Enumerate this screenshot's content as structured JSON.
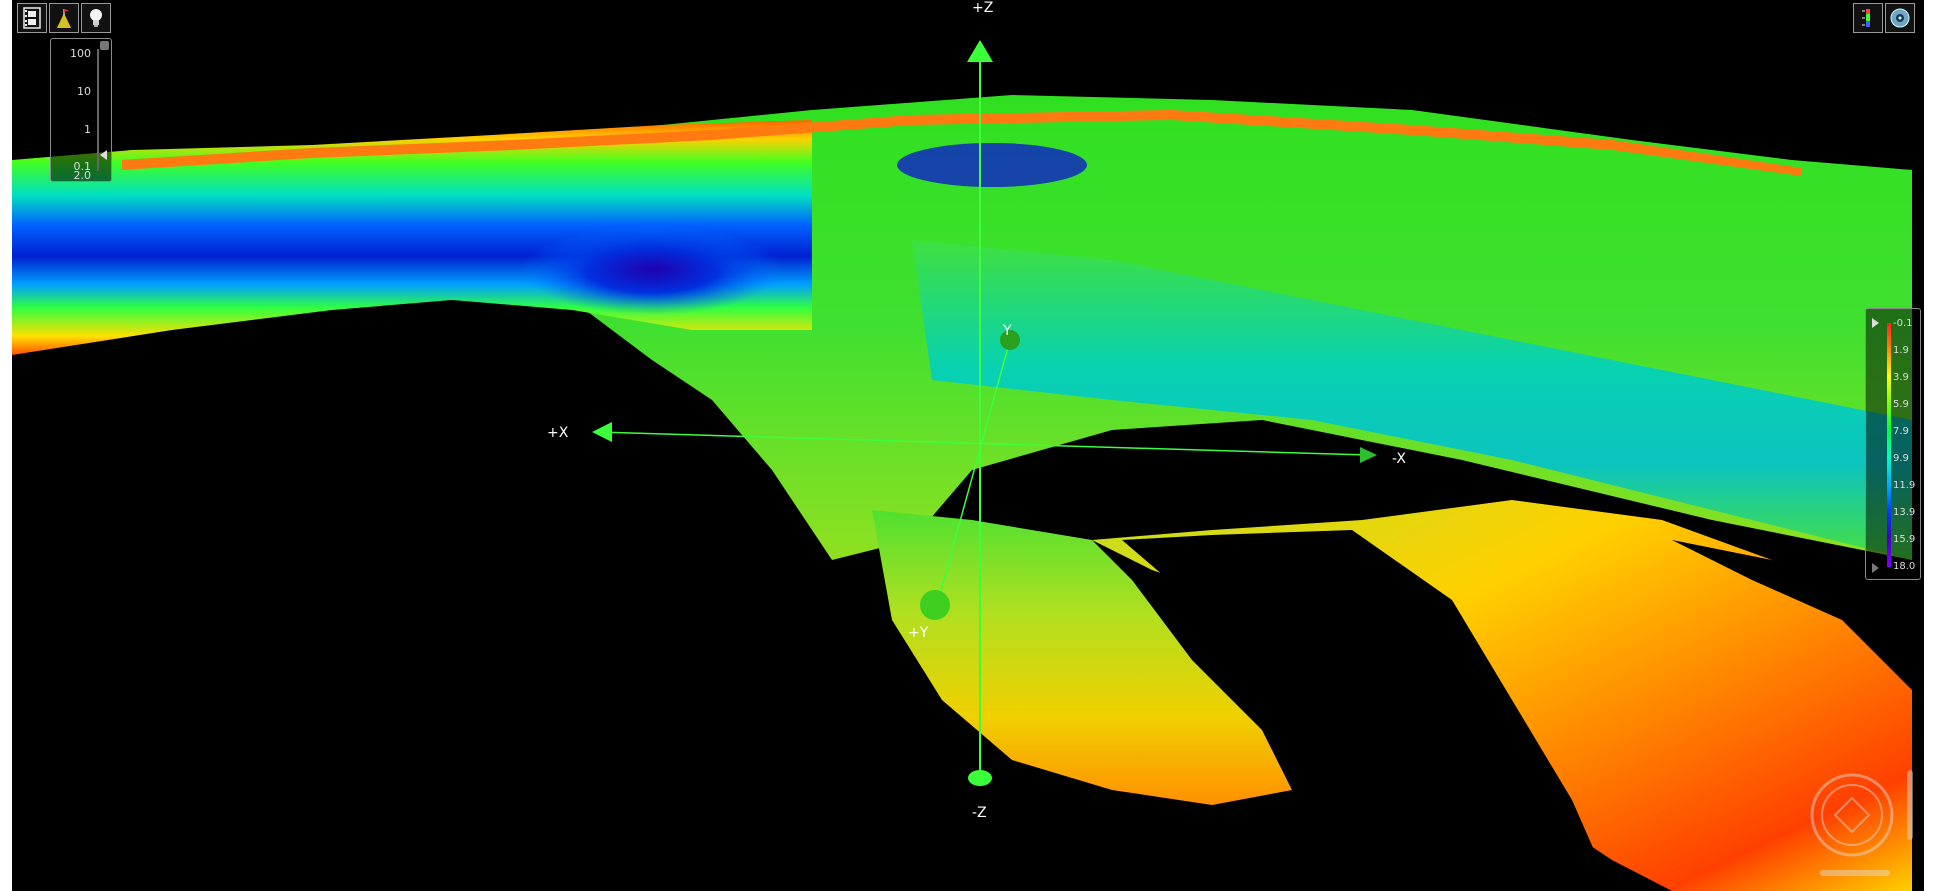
{
  "colors": {
    "background": "#000000",
    "axis": "#3cff3c",
    "panel_border": "#8a8a8a",
    "label_text": "#dddddd"
  },
  "toolbar_left": [
    {
      "id": "animation-button",
      "icon": "film-strip-icon"
    },
    {
      "id": "flag-button",
      "icon": "flag-cone-icon"
    },
    {
      "id": "light-button",
      "icon": "lightbulb-icon"
    }
  ],
  "toolbar_right": [
    {
      "id": "vertical-scale-button",
      "icon": "ruler-icon"
    },
    {
      "id": "settings-button",
      "icon": "disc-icon"
    }
  ],
  "exaggeration_panel": {
    "ticks": [
      "100",
      "10",
      "1",
      "0.1"
    ],
    "current": "2.0"
  },
  "axes": {
    "plus_z": "+Z",
    "minus_z": "-Z",
    "plus_x": "+X",
    "minus_x": "-X",
    "plus_y": "+Y",
    "minus_y": "Y"
  },
  "legend": {
    "values": [
      "-0.1",
      "1.9",
      "3.9",
      "5.9",
      "7.9",
      "9.9",
      "11.9",
      "13.9",
      "15.9",
      "18.0"
    ]
  },
  "navigation": {
    "icon": "compass-icon"
  }
}
